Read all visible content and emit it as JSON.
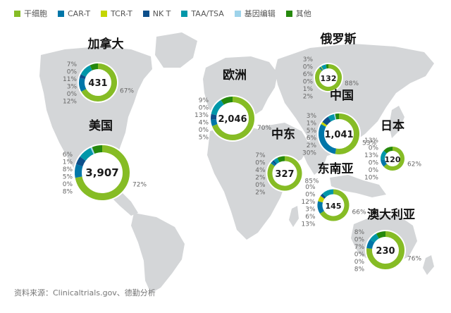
{
  "legend": [
    {
      "label": "干细胞",
      "color": "#86bc25"
    },
    {
      "label": "CAR-T",
      "color": "#0076a8"
    },
    {
      "label": "TCR-T",
      "color": "#c4d600"
    },
    {
      "label": "NK T",
      "color": "#0d4f8b"
    },
    {
      "label": "TAA/TSA",
      "color": "#0097a9"
    },
    {
      "label": "基因编辑",
      "color": "#9ed3ea"
    },
    {
      "label": "其他",
      "color": "#26890d"
    }
  ],
  "source": "资料来源：Clinicaltrials.gov、德勤分析",
  "chart_data": {
    "type": "donut-map",
    "regions": [
      {
        "name": "加拿大",
        "total": "431",
        "pcts": {
          "stem": 67,
          "cart": 12,
          "tcrt": 0,
          "nkt": 3,
          "taa": 11,
          "gene": 0,
          "other": 7
        }
      },
      {
        "name": "美国",
        "total": "3,907",
        "pcts": {
          "stem": 72,
          "cart": 8,
          "tcrt": 0,
          "nkt": 5,
          "taa": 8,
          "gene": 1,
          "other": 6
        }
      },
      {
        "name": "欧洲",
        "total": "2,046",
        "pcts": {
          "stem": 70,
          "cart": 5,
          "tcrt": 0,
          "nkt": 4,
          "taa": 13,
          "gene": 0,
          "other": 9
        }
      },
      {
        "name": "中东",
        "total": "327",
        "pcts": {
          "stem": 85,
          "cart": 2,
          "tcrt": 0,
          "nkt": 2,
          "taa": 4,
          "gene": 0,
          "other": 7
        }
      },
      {
        "name": "俄罗斯",
        "total": "132",
        "pcts": {
          "stem": 88,
          "cart": 2,
          "tcrt": 1,
          "nkt": 0,
          "taa": 6,
          "gene": 0,
          "other": 3
        }
      },
      {
        "name": "中国",
        "total": "1,041",
        "pcts": {
          "stem": 53,
          "cart": 30,
          "tcrt": 2,
          "nkt": 6,
          "taa": 5,
          "gene": 1,
          "other": 3
        }
      },
      {
        "name": "日本",
        "total": "120",
        "pcts": {
          "stem": 62,
          "cart": 10,
          "tcrt": 0,
          "nkt": 0,
          "taa": 13,
          "gene": 0,
          "other": 13
        }
      },
      {
        "name": "东南亚",
        "total": "145",
        "pcts": {
          "stem": 66,
          "cart": 13,
          "tcrt": 6,
          "nkt": 3,
          "taa": 12,
          "gene": 0,
          "other": 0
        }
      },
      {
        "name": "澳大利亚",
        "total": "230",
        "pcts": {
          "stem": 76,
          "cart": 8,
          "tcrt": 0,
          "nkt": 0,
          "taa": 7,
          "gene": 0,
          "other": 8
        }
      }
    ]
  }
}
